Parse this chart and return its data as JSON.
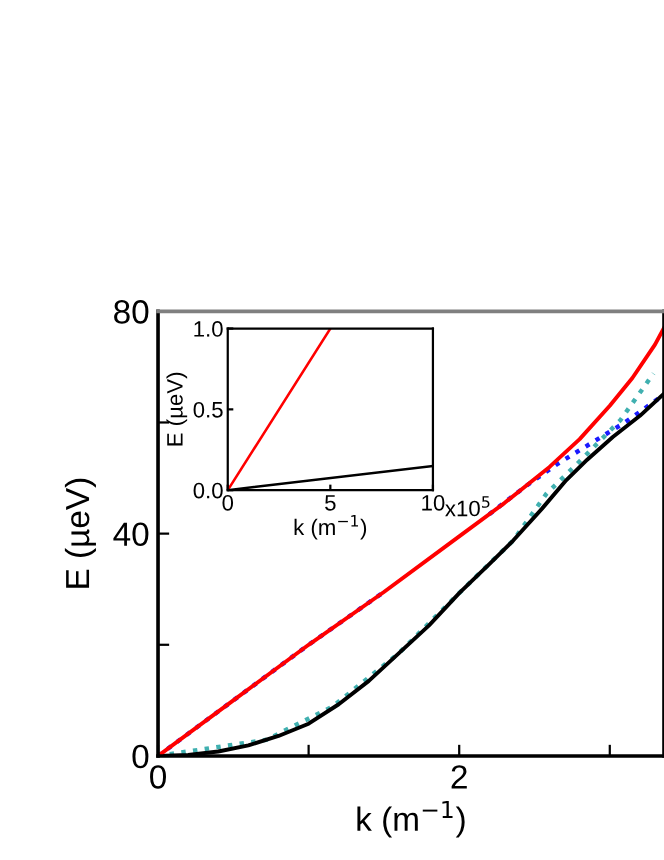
{
  "chart_data": [
    {
      "type": "line",
      "xlabel": "k (m$^{−1}$)",
      "ylabel": "E (µeV)",
      "xlim": [
        0,
        3.36
      ],
      "ylim": [
        0,
        80
      ],
      "xticks": [
        0,
        {
          "value": 1,
          "label": null
        },
        2,
        {
          "value": 3,
          "label": null
        }
      ],
      "yticks": [
        0,
        {
          "value": 20,
          "label": null
        },
        40,
        {
          "value": 60,
          "label": null
        },
        80
      ],
      "grid": false,
      "legend": false,
      "series": [
        {
          "color": "#1a1aff",
          "line_style": "dotted",
          "x": [
            0,
            0.5,
            1,
            1.5,
            2,
            2.2,
            2.44,
            2.65,
            2.89,
            3.1,
            3.36
          ],
          "values": [
            0,
            10,
            20,
            29.5,
            null,
            43.5,
            48.5,
            52.5,
            56.5,
            60,
            65
          ]
        },
        {
          "color": "#40b0b0",
          "line_style": "dotted",
          "x": [
            0,
            0.72,
            1.16,
            1.6,
            2,
            2.36,
            2.58,
            2.8,
            3.07,
            3.29
          ],
          "values": [
            0,
            2.9,
            8.9,
            18.5,
            29.3,
            38.8,
            47.2,
            53,
            60.4,
            68.8
          ]
        },
        {
          "color": "#000000",
          "line_style": "solid",
          "x": [
            0,
            0.2,
            0.4,
            0.6,
            0.8,
            1.0,
            1.2,
            1.4,
            1.6,
            1.8,
            2,
            2.2,
            2.36,
            2.55,
            2.71,
            2.85,
            3.02,
            3.2,
            3.36
          ],
          "values": [
            0,
            0.2,
            0.8,
            1.9,
            3.6,
            5.8,
            9.3,
            13.5,
            18.5,
            23.5,
            29.3,
            34.5,
            38.8,
            44.5,
            49.6,
            53.3,
            57.4,
            61.2,
            65.2
          ]
        },
        {
          "color": "#ff0000",
          "line_style": "solid",
          "x": [
            0,
            0.5,
            1,
            1.5,
            2,
            2.3,
            2.6,
            2.8,
            3.0,
            3.15,
            3.3,
            3.36
          ],
          "values": [
            0,
            10,
            20,
            29.5,
            39.5,
            45.5,
            52,
            57,
            63,
            68,
            74,
            77
          ]
        }
      ]
    },
    {
      "type": "line",
      "xlabel": "k (m$^{−1}$)",
      "ylabel": "E (µeV)",
      "xlim": [
        0,
        10
      ],
      "ylim": [
        0,
        1.0
      ],
      "xticks": [
        0,
        5,
        10
      ],
      "annotations": [
        "x10$^{5}$"
      ],
      "yticks": [
        {
          "value": 0,
          "label": "0.0"
        },
        {
          "value": 0.5,
          "label": "0.5"
        },
        {
          "value": 1.0,
          "label": "1.0"
        }
      ],
      "grid": false,
      "legend": false,
      "series": [
        {
          "color": "#ff0000",
          "line_style": "solid",
          "x": [
            0,
            5
          ],
          "values": [
            0,
            1.0
          ]
        },
        {
          "color": "#000000",
          "line_style": "solid",
          "x": [
            0,
            10
          ],
          "values": [
            0,
            0.15
          ]
        }
      ]
    }
  ]
}
